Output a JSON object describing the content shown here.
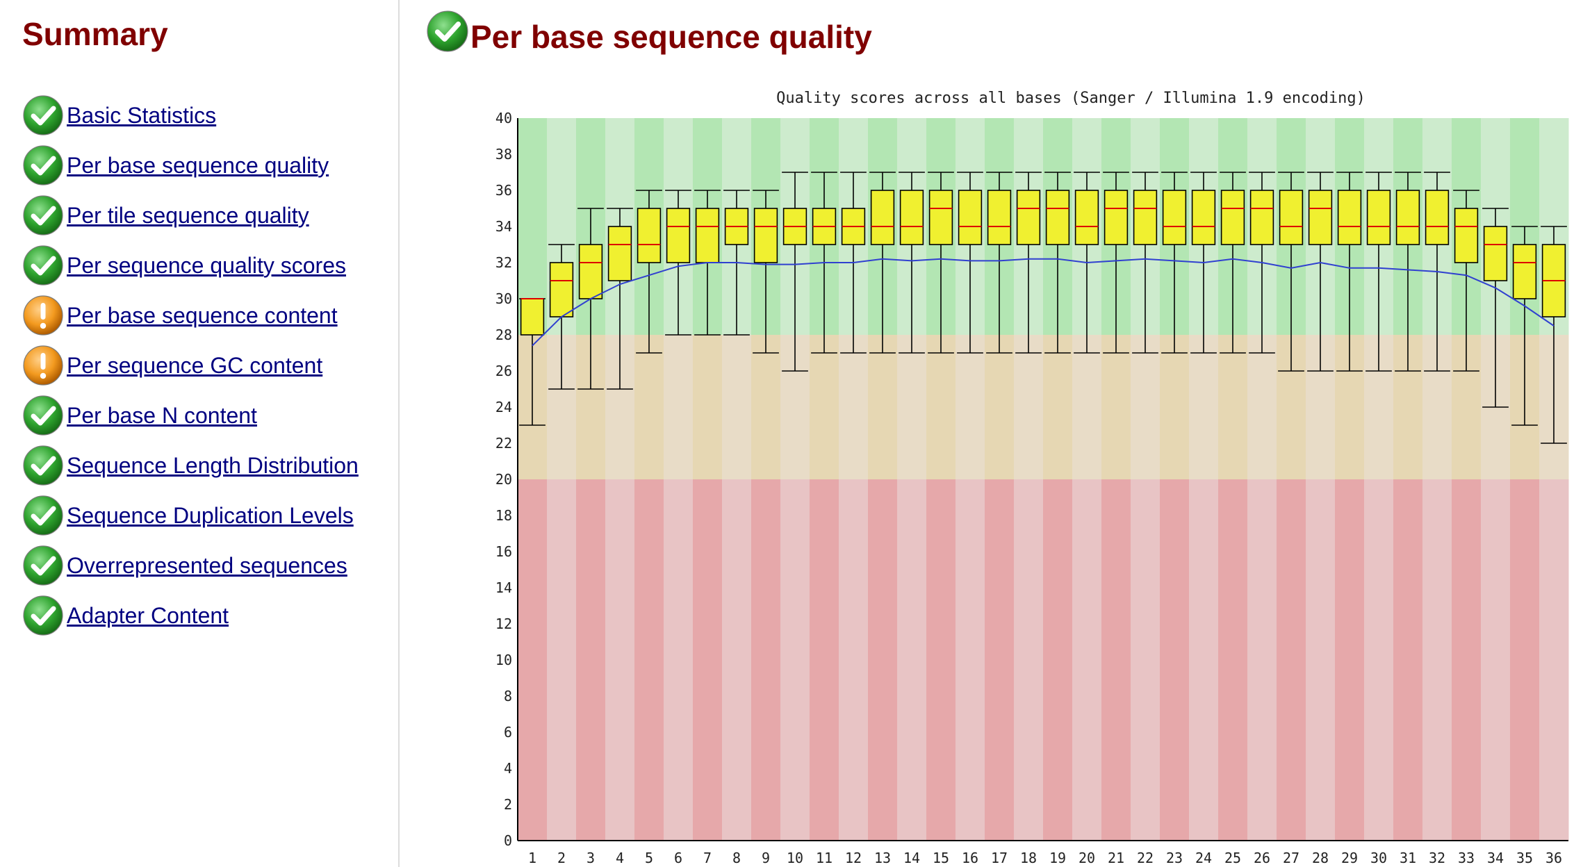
{
  "summary": {
    "title": "Summary",
    "items": [
      {
        "label": "Basic Statistics",
        "status": "pass",
        "icon": "pass-check-icon"
      },
      {
        "label": "Per base sequence quality",
        "status": "pass",
        "icon": "pass-check-icon"
      },
      {
        "label": "Per tile sequence quality",
        "status": "pass",
        "icon": "pass-check-icon"
      },
      {
        "label": "Per sequence quality scores",
        "status": "pass",
        "icon": "pass-check-icon"
      },
      {
        "label": "Per base sequence content",
        "status": "warn",
        "icon": "warning-icon"
      },
      {
        "label": "Per sequence GC content",
        "status": "warn",
        "icon": "warning-icon"
      },
      {
        "label": "Per base N content",
        "status": "pass",
        "icon": "pass-check-icon"
      },
      {
        "label": "Sequence Length Distribution",
        "status": "pass",
        "icon": "pass-check-icon"
      },
      {
        "label": "Sequence Duplication Levels",
        "status": "pass",
        "icon": "pass-check-icon"
      },
      {
        "label": "Overrepresented sequences",
        "status": "pass",
        "icon": "pass-check-icon"
      },
      {
        "label": "Adapter Content",
        "status": "pass",
        "icon": "pass-check-icon"
      }
    ]
  },
  "main": {
    "title": "Per base sequence quality",
    "status": "pass",
    "icon": "pass-check-icon"
  },
  "colors": {
    "heading": "#800000",
    "link": "#000080",
    "pass_icon": "#2ea32e",
    "warn_icon": "#f39a1f",
    "box_fill": "#f0f030",
    "median_line": "#dd0000",
    "mean_line": "#3040d0",
    "zone_good": [
      "#b3e6b3",
      "#cdebcd"
    ],
    "zone_ok": [
      "#e6d7b3",
      "#e8dcc7"
    ],
    "zone_bad": [
      "#e6a8aa",
      "#e8c4c5"
    ]
  },
  "chart_data": {
    "type": "boxplot",
    "title": "Quality scores across all bases (Sanger / Illumina 1.9 encoding)",
    "xlabel": "",
    "ylabel": "",
    "ylim": [
      0,
      40
    ],
    "y_ticks": [
      0,
      2,
      4,
      6,
      8,
      10,
      12,
      14,
      16,
      18,
      20,
      22,
      24,
      26,
      28,
      30,
      32,
      34,
      36,
      38,
      40
    ],
    "zones": [
      {
        "from": 28,
        "to": 40,
        "quality": "good"
      },
      {
        "from": 20,
        "to": 28,
        "quality": "reasonable"
      },
      {
        "from": 0,
        "to": 20,
        "quality": "poor"
      }
    ],
    "categories": [
      "1",
      "2",
      "3",
      "4",
      "5",
      "6",
      "7",
      "8",
      "9",
      "10",
      "11",
      "12",
      "13",
      "14",
      "15",
      "16",
      "17",
      "18",
      "19",
      "20",
      "21",
      "22",
      "23",
      "24",
      "25",
      "26",
      "27",
      "28",
      "29",
      "30",
      "31",
      "32",
      "33",
      "34",
      "35",
      "36"
    ],
    "boxes": [
      {
        "whisker_low": 23,
        "q1": 28,
        "median": 30,
        "q3": 30,
        "whisker_high": 30
      },
      {
        "whisker_low": 25,
        "q1": 29,
        "median": 31,
        "q3": 32,
        "whisker_high": 33
      },
      {
        "whisker_low": 25,
        "q1": 30,
        "median": 32,
        "q3": 33,
        "whisker_high": 35
      },
      {
        "whisker_low": 25,
        "q1": 31,
        "median": 33,
        "q3": 34,
        "whisker_high": 35
      },
      {
        "whisker_low": 27,
        "q1": 32,
        "median": 33,
        "q3": 35,
        "whisker_high": 36
      },
      {
        "whisker_low": 28,
        "q1": 32,
        "median": 34,
        "q3": 35,
        "whisker_high": 36
      },
      {
        "whisker_low": 28,
        "q1": 32,
        "median": 34,
        "q3": 35,
        "whisker_high": 36
      },
      {
        "whisker_low": 28,
        "q1": 33,
        "median": 34,
        "q3": 35,
        "whisker_high": 36
      },
      {
        "whisker_low": 27,
        "q1": 32,
        "median": 34,
        "q3": 35,
        "whisker_high": 36
      },
      {
        "whisker_low": 26,
        "q1": 33,
        "median": 34,
        "q3": 35,
        "whisker_high": 37
      },
      {
        "whisker_low": 27,
        "q1": 33,
        "median": 34,
        "q3": 35,
        "whisker_high": 37
      },
      {
        "whisker_low": 27,
        "q1": 33,
        "median": 34,
        "q3": 35,
        "whisker_high": 37
      },
      {
        "whisker_low": 27,
        "q1": 33,
        "median": 34,
        "q3": 36,
        "whisker_high": 37
      },
      {
        "whisker_low": 27,
        "q1": 33,
        "median": 34,
        "q3": 36,
        "whisker_high": 37
      },
      {
        "whisker_low": 27,
        "q1": 33,
        "median": 35,
        "q3": 36,
        "whisker_high": 37
      },
      {
        "whisker_low": 27,
        "q1": 33,
        "median": 34,
        "q3": 36,
        "whisker_high": 37
      },
      {
        "whisker_low": 27,
        "q1": 33,
        "median": 34,
        "q3": 36,
        "whisker_high": 37
      },
      {
        "whisker_low": 27,
        "q1": 33,
        "median": 35,
        "q3": 36,
        "whisker_high": 37
      },
      {
        "whisker_low": 27,
        "q1": 33,
        "median": 35,
        "q3": 36,
        "whisker_high": 37
      },
      {
        "whisker_low": 27,
        "q1": 33,
        "median": 34,
        "q3": 36,
        "whisker_high": 37
      },
      {
        "whisker_low": 27,
        "q1": 33,
        "median": 35,
        "q3": 36,
        "whisker_high": 37
      },
      {
        "whisker_low": 27,
        "q1": 33,
        "median": 35,
        "q3": 36,
        "whisker_high": 37
      },
      {
        "whisker_low": 27,
        "q1": 33,
        "median": 34,
        "q3": 36,
        "whisker_high": 37
      },
      {
        "whisker_low": 27,
        "q1": 33,
        "median": 34,
        "q3": 36,
        "whisker_high": 37
      },
      {
        "whisker_low": 27,
        "q1": 33,
        "median": 35,
        "q3": 36,
        "whisker_high": 37
      },
      {
        "whisker_low": 27,
        "q1": 33,
        "median": 35,
        "q3": 36,
        "whisker_high": 37
      },
      {
        "whisker_low": 26,
        "q1": 33,
        "median": 34,
        "q3": 36,
        "whisker_high": 37
      },
      {
        "whisker_low": 26,
        "q1": 33,
        "median": 35,
        "q3": 36,
        "whisker_high": 37
      },
      {
        "whisker_low": 26,
        "q1": 33,
        "median": 34,
        "q3": 36,
        "whisker_high": 37
      },
      {
        "whisker_low": 26,
        "q1": 33,
        "median": 34,
        "q3": 36,
        "whisker_high": 37
      },
      {
        "whisker_low": 26,
        "q1": 33,
        "median": 34,
        "q3": 36,
        "whisker_high": 37
      },
      {
        "whisker_low": 26,
        "q1": 33,
        "median": 34,
        "q3": 36,
        "whisker_high": 37
      },
      {
        "whisker_low": 26,
        "q1": 32,
        "median": 34,
        "q3": 35,
        "whisker_high": 36
      },
      {
        "whisker_low": 24,
        "q1": 31,
        "median": 33,
        "q3": 34,
        "whisker_high": 35
      },
      {
        "whisker_low": 23,
        "q1": 30,
        "median": 32,
        "q3": 33,
        "whisker_high": 34
      },
      {
        "whisker_low": 22,
        "q1": 29,
        "median": 31,
        "q3": 33,
        "whisker_high": 34
      }
    ],
    "mean": [
      27.4,
      29.0,
      30.0,
      30.8,
      31.3,
      31.8,
      32.0,
      32.0,
      31.9,
      31.9,
      32.0,
      32.0,
      32.2,
      32.1,
      32.2,
      32.1,
      32.1,
      32.2,
      32.2,
      32.0,
      32.1,
      32.2,
      32.1,
      32.0,
      32.2,
      32.0,
      31.7,
      32.0,
      31.7,
      31.7,
      31.6,
      31.5,
      31.3,
      30.6,
      29.6,
      28.5
    ],
    "grid": false,
    "legend": "none"
  }
}
